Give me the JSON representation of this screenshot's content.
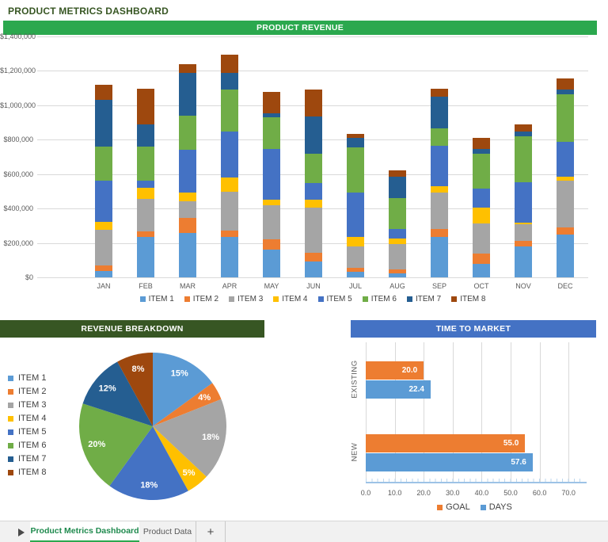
{
  "page": {
    "title": "PRODUCT METRICS DASHBOARD"
  },
  "sections": {
    "product_revenue": {
      "title": "PRODUCT REVENUE"
    },
    "revenue_breakdown": {
      "title": "REVENUE BREAKDOWN"
    },
    "time_to_market": {
      "title": "TIME TO MARKET"
    }
  },
  "colors": {
    "banner_green": "#2BA84E",
    "banner_dark_green": "#375623",
    "banner_blue": "#4472C4",
    "title_text": "#375623",
    "gridline": "#D9D9D9",
    "axis_text": "#595959",
    "legend_text": "#404040",
    "ttm_axis_line": "#9DC3E6",
    "tab_active_text": "#1F8A4E",
    "series_palette": [
      "#5B9BD5",
      "#ED7D31",
      "#A5A5A5",
      "#FFC000",
      "#4472C4",
      "#70AD47",
      "#255E91",
      "#9E480E"
    ]
  },
  "chart_data": [
    {
      "id": "product_revenue",
      "type": "bar",
      "stacked": true,
      "title": "PRODUCT REVENUE",
      "categories": [
        "JAN",
        "FEB",
        "MAR",
        "APR",
        "MAY",
        "JUN",
        "JUL",
        "AUG",
        "SEP",
        "OCT",
        "NOV",
        "DEC"
      ],
      "series": [
        {
          "name": "ITEM 1",
          "color": "#5B9BD5",
          "values": [
            36000,
            237000,
            257000,
            234000,
            159000,
            94000,
            31000,
            23000,
            234000,
            78000,
            179000,
            249000
          ]
        },
        {
          "name": "ITEM 2",
          "color": "#ED7D31",
          "values": [
            31000,
            31000,
            89000,
            39000,
            64000,
            47000,
            23000,
            23000,
            47000,
            58000,
            31000,
            39000
          ]
        },
        {
          "name": "ITEM 3",
          "color": "#A5A5A5",
          "values": [
            210000,
            187000,
            98000,
            223000,
            198000,
            265000,
            125000,
            148000,
            210000,
            179000,
            98000,
            273000
          ]
        },
        {
          "name": "ITEM 4",
          "color": "#FFC000",
          "values": [
            45000,
            64000,
            51000,
            86000,
            31000,
            47000,
            55000,
            31000,
            39000,
            90000,
            11000,
            23000
          ]
        },
        {
          "name": "ITEM 5",
          "color": "#4472C4",
          "values": [
            242000,
            45000,
            245000,
            265000,
            293000,
            94000,
            257000,
            55000,
            234000,
            109000,
            234000,
            203000
          ]
        },
        {
          "name": "ITEM 6",
          "color": "#70AD47",
          "values": [
            196000,
            196000,
            198000,
            245000,
            186000,
            172000,
            265000,
            179000,
            101000,
            206000,
            265000,
            276000
          ]
        },
        {
          "name": "ITEM 7",
          "color": "#255E91",
          "values": [
            271000,
            131000,
            249000,
            94000,
            20000,
            218000,
            55000,
            125000,
            187000,
            25000,
            31000,
            28000
          ]
        },
        {
          "name": "ITEM 8",
          "color": "#9E480E",
          "values": [
            87000,
            207000,
            51000,
            106000,
            125000,
            156000,
            23000,
            39000,
            44000,
            65000,
            39000,
            67000
          ]
        }
      ],
      "yticks": [
        "$0",
        "$200,000",
        "$400,000",
        "$600,000",
        "$800,000",
        "$1,000,000",
        "$1,200,000",
        "$1,400,000"
      ],
      "ylim": [
        0,
        1400000
      ],
      "grid": true,
      "legend_position": "bottom"
    },
    {
      "id": "revenue_breakdown",
      "type": "pie",
      "title": "REVENUE BREAKDOWN",
      "labels": [
        "ITEM 1",
        "ITEM 2",
        "ITEM 3",
        "ITEM 4",
        "ITEM 5",
        "ITEM 6",
        "ITEM 7",
        "ITEM 8"
      ],
      "values": [
        15,
        4,
        18,
        5,
        18,
        20,
        12,
        8
      ],
      "value_labels": [
        "15%",
        "4%",
        "18%",
        "5%",
        "18%",
        "20%",
        "12%",
        "8%"
      ],
      "colors": [
        "#5B9BD5",
        "#ED7D31",
        "#A5A5A5",
        "#FFC000",
        "#4472C4",
        "#70AD47",
        "#255E91",
        "#9E480E"
      ],
      "start_angle_deg": 0,
      "direction": "clockwise",
      "legend_position": "left"
    },
    {
      "id": "time_to_market",
      "type": "bar",
      "orientation": "horizontal",
      "title": "TIME TO MARKET",
      "categories": [
        "EXISTING",
        "NEW"
      ],
      "series": [
        {
          "name": "GOAL",
          "color": "#ED7D31",
          "values": [
            20.0,
            55.0
          ]
        },
        {
          "name": "DAYS",
          "color": "#5B9BD5",
          "values": [
            22.4,
            57.6
          ]
        }
      ],
      "value_labels": [
        [
          "20.0",
          "55.0"
        ],
        [
          "22.4",
          "57.6"
        ]
      ],
      "xticks": [
        "0.0",
        "10.0",
        "20.0",
        "30.0",
        "40.0",
        "50.0",
        "60.0",
        "70.0"
      ],
      "xlim": [
        0,
        75
      ],
      "grid": true,
      "legend_position": "bottom"
    }
  ],
  "tabs": {
    "items": [
      {
        "label": "Product Metrics Dashboard",
        "active": true
      },
      {
        "label": "Product Data",
        "active": false
      }
    ],
    "add_label": "+"
  }
}
